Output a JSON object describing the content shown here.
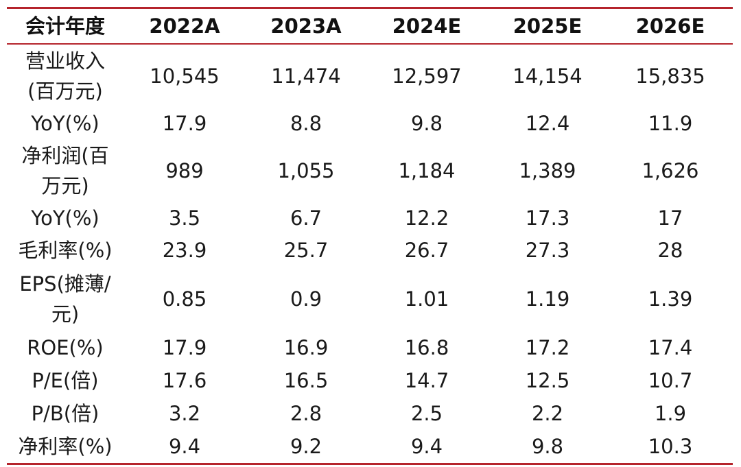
{
  "table": {
    "headers": [
      "会计年度",
      "2022A",
      "2023A",
      "2024E",
      "2025E",
      "2026E"
    ],
    "rows": [
      {
        "label": "营业收入\n(百万元)",
        "values": [
          "10,545",
          "11,474",
          "12,597",
          "14,154",
          "15,835"
        ]
      },
      {
        "label": "YoY(%)",
        "values": [
          "17.9",
          "8.8",
          "9.8",
          "12.4",
          "11.9"
        ]
      },
      {
        "label": "净利润(百\n万元)",
        "values": [
          "989",
          "1,055",
          "1,184",
          "1,389",
          "1,626"
        ]
      },
      {
        "label": "YoY(%)",
        "values": [
          "3.5",
          "6.7",
          "12.2",
          "17.3",
          "17"
        ]
      },
      {
        "label": "毛利率(%)",
        "values": [
          "23.9",
          "25.7",
          "26.7",
          "27.3",
          "28"
        ]
      },
      {
        "label": "EPS(摊薄/\n元)",
        "values": [
          "0.85",
          "0.9",
          "1.01",
          "1.19",
          "1.39"
        ]
      },
      {
        "label": "ROE(%)",
        "values": [
          "17.9",
          "16.9",
          "16.8",
          "17.2",
          "17.4"
        ]
      },
      {
        "label": "P/E(倍)",
        "values": [
          "17.6",
          "16.5",
          "14.7",
          "12.5",
          "10.7"
        ]
      },
      {
        "label": "P/B(倍)",
        "values": [
          "3.2",
          "2.8",
          "2.5",
          "2.2",
          "1.9"
        ]
      },
      {
        "label": "净利率(%)",
        "values": [
          "9.4",
          "9.2",
          "9.4",
          "9.8",
          "10.3"
        ]
      }
    ]
  },
  "colors": {
    "rule": "#b5242c",
    "text": "#1a1a1a"
  }
}
